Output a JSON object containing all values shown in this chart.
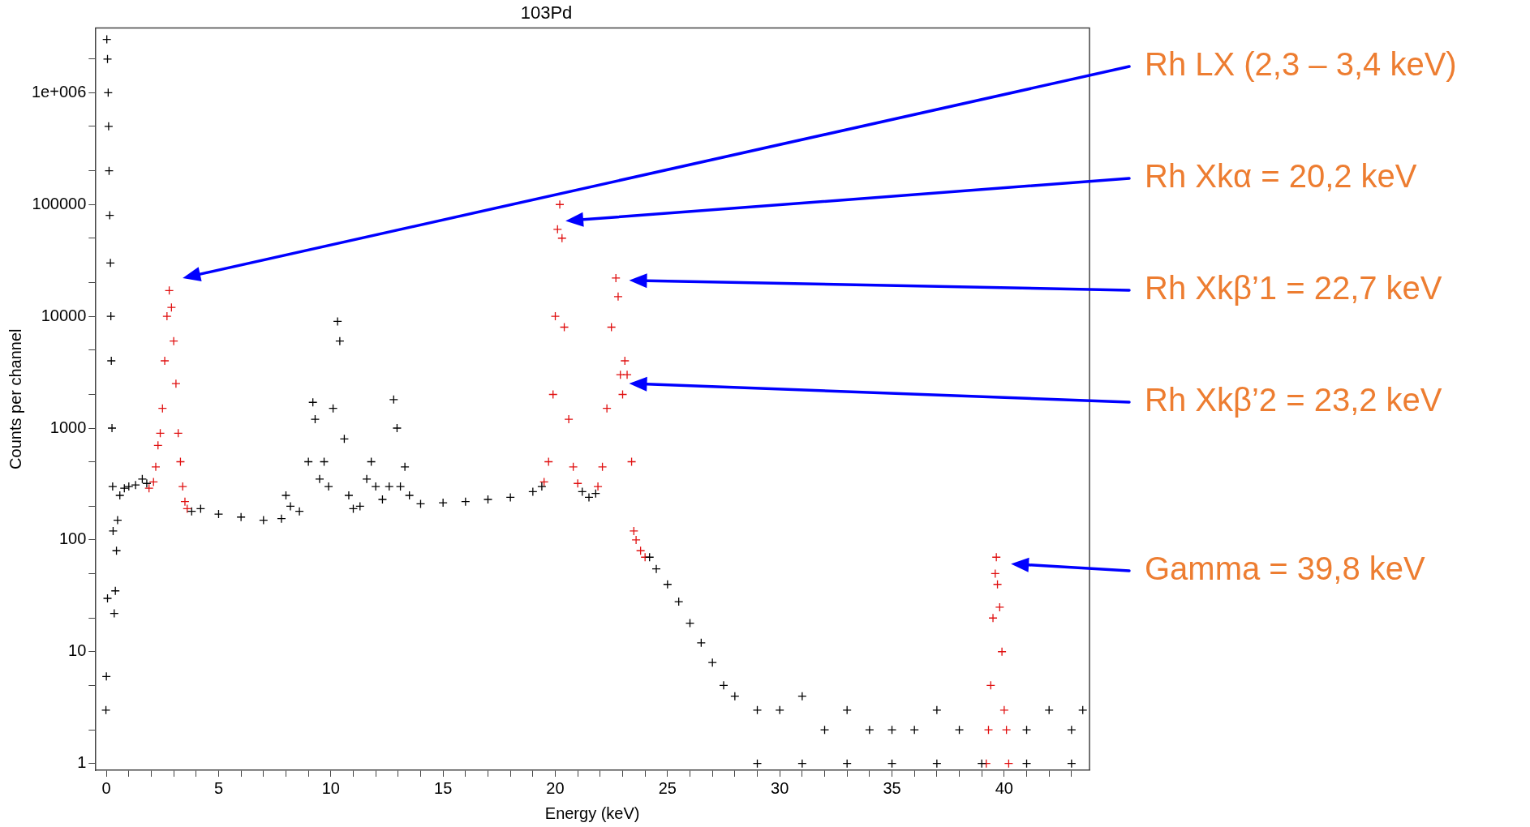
{
  "chart_data": {
    "type": "scatter",
    "title": "103Pd",
    "xlabel": "Energy (keV)",
    "ylabel": "Counts per channel",
    "log": "y",
    "grid": false,
    "legend": false,
    "marker": "cross",
    "xlim": [
      -0.5,
      43.8
    ],
    "ylim": [
      0.87,
      3800000
    ],
    "xticks": [
      0,
      {
        "value": 1,
        "label": null
      },
      {
        "value": 2,
        "label": null
      },
      {
        "value": 3,
        "label": null
      },
      {
        "value": 4,
        "label": null
      },
      5,
      {
        "value": 6,
        "label": null
      },
      {
        "value": 7,
        "label": null
      },
      {
        "value": 8,
        "label": null
      },
      {
        "value": 9,
        "label": null
      },
      10,
      {
        "value": 11,
        "label": null
      },
      {
        "value": 12,
        "label": null
      },
      {
        "value": 13,
        "label": null
      },
      {
        "value": 14,
        "label": null
      },
      15,
      {
        "value": 16,
        "label": null
      },
      {
        "value": 17,
        "label": null
      },
      {
        "value": 18,
        "label": null
      },
      {
        "value": 19,
        "label": null
      },
      20,
      {
        "value": 21,
        "label": null
      },
      {
        "value": 22,
        "label": null
      },
      {
        "value": 23,
        "label": null
      },
      {
        "value": 24,
        "label": null
      },
      25,
      {
        "value": 26,
        "label": null
      },
      {
        "value": 27,
        "label": null
      },
      {
        "value": 28,
        "label": null
      },
      {
        "value": 29,
        "label": null
      },
      30,
      {
        "value": 31,
        "label": null
      },
      {
        "value": 32,
        "label": null
      },
      {
        "value": 33,
        "label": null
      },
      {
        "value": 34,
        "label": null
      },
      35,
      {
        "value": 36,
        "label": null
      },
      {
        "value": 37,
        "label": null
      },
      {
        "value": 38,
        "label": null
      },
      {
        "value": 39,
        "label": null
      },
      40,
      {
        "value": 41,
        "label": null
      },
      {
        "value": 42,
        "label": null
      },
      {
        "value": 43,
        "label": null
      }
    ],
    "yticks": [
      1,
      {
        "value": 2,
        "label": null
      },
      {
        "value": 5,
        "label": null
      },
      10,
      {
        "value": 20,
        "label": null
      },
      {
        "value": 50,
        "label": null
      },
      100,
      {
        "value": 200,
        "label": null
      },
      {
        "value": 500,
        "label": null
      },
      1000,
      {
        "value": 2000,
        "label": null
      },
      {
        "value": 5000,
        "label": null
      },
      10000,
      {
        "value": 20000,
        "label": null
      },
      {
        "value": 50000,
        "label": null
      },
      100000,
      {
        "value": 200000,
        "label": null
      },
      {
        "value": 500000,
        "label": null
      },
      {
        "value": 1000000,
        "label": "1e+006"
      },
      {
        "value": 2000000,
        "label": null
      }
    ],
    "series": [
      {
        "color": "#000000",
        "x": [
          -0.02,
          0.0,
          0.02,
          0.05,
          0.08,
          0.1,
          0.12,
          0.15,
          0.18,
          0.2,
          0.22,
          0.25,
          0.28,
          0.3,
          0.05,
          0.35,
          0.4,
          0.45,
          0.5,
          0.6,
          0.8,
          1.0,
          1.3,
          1.6,
          1.8,
          3.8,
          4.2,
          5,
          6,
          7,
          7.8,
          8.0,
          8.2,
          8.6,
          9.0,
          9.2,
          9.3,
          9.5,
          9.7,
          9.9,
          10.1,
          10.3,
          10.4,
          10.6,
          10.8,
          11.0,
          11.3,
          11.6,
          11.8,
          12.0,
          12.3,
          12.6,
          12.8,
          12.95,
          13.1,
          13.3,
          13.5,
          14,
          15,
          16,
          17,
          18,
          19,
          19.4,
          21.2,
          21.5,
          21.8,
          24.2,
          24.5,
          25,
          25.5,
          26,
          26.5,
          27,
          27.5,
          28,
          29,
          30,
          31,
          32,
          33,
          34,
          35,
          36,
          37,
          38,
          29,
          31,
          33,
          35,
          37,
          39,
          41,
          43,
          41,
          43,
          42,
          43.5
        ],
        "values": [
          3,
          6,
          3000000,
          2000000,
          1000000,
          500000,
          200000,
          80000,
          30000,
          10000,
          4000,
          1000,
          300,
          120,
          30,
          22,
          35,
          80,
          150,
          250,
          290,
          300,
          310,
          350,
          320,
          180,
          190,
          170,
          160,
          150,
          155,
          250,
          200,
          180,
          500,
          1700,
          1200,
          350,
          500,
          300,
          1500,
          9000,
          6000,
          800,
          250,
          190,
          200,
          350,
          500,
          300,
          230,
          300,
          1800,
          1000,
          300,
          450,
          250,
          210,
          215,
          220,
          230,
          240,
          270,
          300,
          270,
          240,
          260,
          70,
          55,
          40,
          28,
          18,
          12,
          8,
          5,
          4,
          3,
          3,
          4,
          2,
          3,
          2,
          2,
          2,
          3,
          2,
          1,
          1,
          1,
          1,
          1,
          1,
          1,
          1,
          2,
          2,
          3,
          3
        ]
      },
      {
        "color": "#e01010",
        "x": [
          1.9,
          2.1,
          2.2,
          2.3,
          2.4,
          2.5,
          2.6,
          2.7,
          2.8,
          2.9,
          3.0,
          3.1,
          3.2,
          3.3,
          3.4,
          3.5,
          3.6,
          19.5,
          19.7,
          19.9,
          20.0,
          20.1,
          20.2,
          20.3,
          20.4,
          20.6,
          20.8,
          21.0,
          21.9,
          22.1,
          22.3,
          22.5,
          22.7,
          22.8,
          22.9,
          23.0,
          23.1,
          23.2,
          23.4,
          23.5,
          23.6,
          23.8,
          24.0,
          39.2,
          39.3,
          39.4,
          39.5,
          39.6,
          39.65,
          39.7,
          39.8,
          39.9,
          40.0,
          40.1,
          40.2
        ],
        "values": [
          290,
          330,
          450,
          700,
          900,
          1500,
          4000,
          10000,
          17000,
          12000,
          6000,
          2500,
          900,
          500,
          300,
          220,
          190,
          330,
          500,
          2000,
          10000,
          60000,
          100000,
          50000,
          8000,
          1200,
          450,
          320,
          300,
          450,
          1500,
          8000,
          22000,
          15000,
          3000,
          2000,
          4000,
          3000,
          500,
          120,
          100,
          80,
          70,
          1,
          2,
          5,
          20,
          50,
          70,
          40,
          25,
          10,
          3,
          2,
          1
        ]
      }
    ],
    "annotations": [
      "Rh LX (2,3 – 3,4 keV)",
      "Rh Xkα = 20,2 keV",
      "Rh Xkβ’1 = 22,7 keV",
      "Rh Xkβ’2 = 23,2 keV",
      "Gamma = 39,8 keV"
    ]
  }
}
